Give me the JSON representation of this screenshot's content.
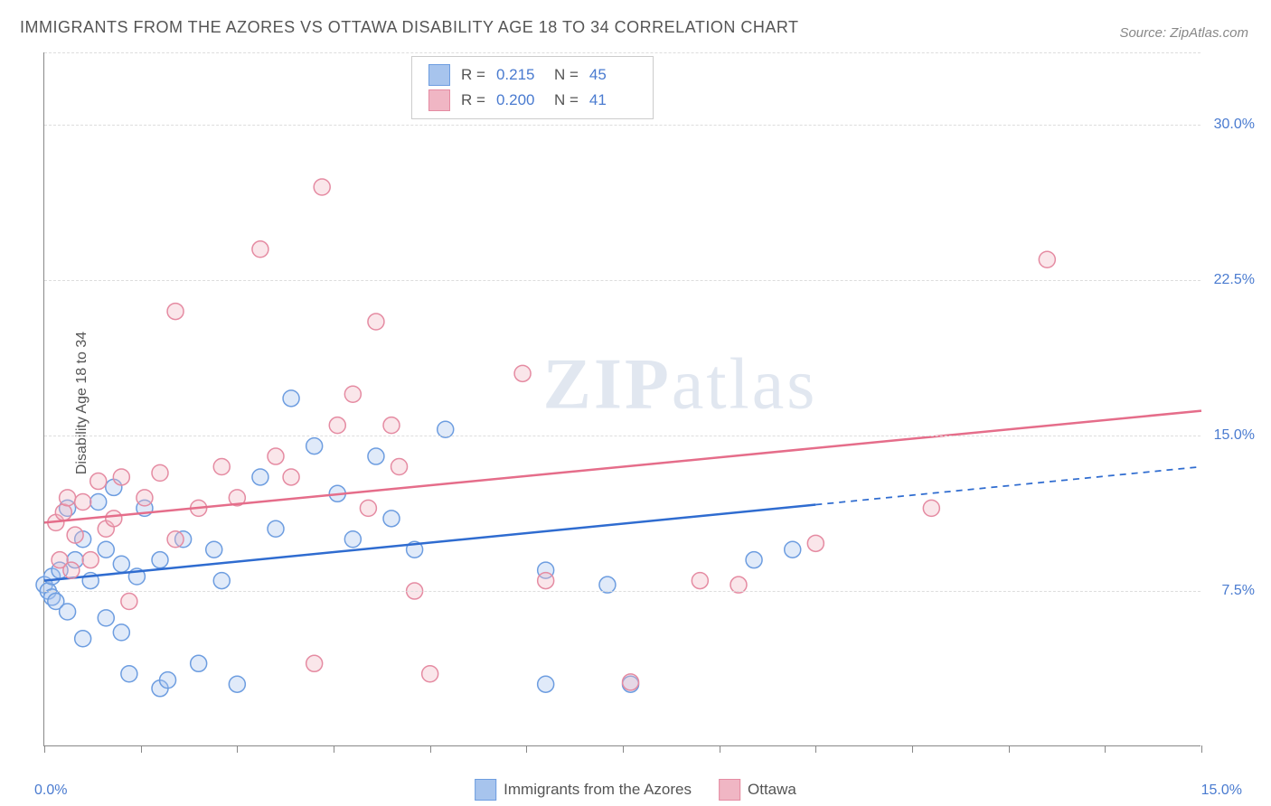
{
  "chart": {
    "type": "scatter",
    "title": "IMMIGRANTS FROM THE AZORES VS OTTAWA DISABILITY AGE 18 TO 34 CORRELATION CHART",
    "source": "Source: ZipAtlas.com",
    "y_axis_label": "Disability Age 18 to 34",
    "watermark": "ZIPatlas",
    "background_color": "#ffffff",
    "grid_color": "#dddddd",
    "axis_color": "#888888",
    "tick_label_color": "#4a7bd0",
    "text_color": "#555555",
    "title_fontsize": 18,
    "axis_label_fontsize": 16,
    "tick_label_fontsize": 16,
    "legend_fontsize": 17,
    "xlim": [
      0,
      15
    ],
    "ylim": [
      0,
      33.5
    ],
    "x_tick_labels": [
      "0.0%",
      "15.0%"
    ],
    "x_tick_positions": [
      0,
      1.25,
      2.5,
      3.75,
      5,
      6.25,
      7.5,
      8.75,
      10,
      11.25,
      12.5,
      13.75,
      15
    ],
    "y_ticks": [
      {
        "value": 7.5,
        "label": "7.5%"
      },
      {
        "value": 15.0,
        "label": "15.0%"
      },
      {
        "value": 22.5,
        "label": "22.5%"
      },
      {
        "value": 30.0,
        "label": "30.0%"
      }
    ],
    "marker_radius": 9,
    "marker_stroke_width": 1.5,
    "marker_fill_opacity": 0.35,
    "trendline_width": 2.5,
    "series": [
      {
        "id": "azores",
        "label": "Immigrants from the Azores",
        "R": "0.215",
        "N": "45",
        "fill_color": "#a7c4ed",
        "stroke_color": "#6d9de0",
        "trendline_color": "#2f6cd0",
        "trendline": {
          "y_at_xmin": 8.0,
          "y_at_xmax": 13.5
        },
        "trendline_solid_until_x": 10.0,
        "points": [
          [
            0.0,
            7.8
          ],
          [
            0.05,
            7.5
          ],
          [
            0.1,
            7.2
          ],
          [
            0.1,
            8.2
          ],
          [
            0.15,
            7.0
          ],
          [
            0.2,
            8.5
          ],
          [
            0.3,
            6.5
          ],
          [
            0.3,
            11.5
          ],
          [
            0.4,
            9.0
          ],
          [
            0.5,
            5.2
          ],
          [
            0.5,
            10.0
          ],
          [
            0.6,
            8.0
          ],
          [
            0.7,
            11.8
          ],
          [
            0.8,
            9.5
          ],
          [
            0.8,
            6.2
          ],
          [
            0.9,
            12.5
          ],
          [
            1.0,
            5.5
          ],
          [
            1.0,
            8.8
          ],
          [
            1.1,
            3.5
          ],
          [
            1.2,
            8.2
          ],
          [
            1.3,
            11.5
          ],
          [
            1.5,
            2.8
          ],
          [
            1.5,
            9.0
          ],
          [
            1.6,
            3.2
          ],
          [
            1.8,
            10.0
          ],
          [
            2.0,
            4.0
          ],
          [
            2.2,
            9.5
          ],
          [
            2.3,
            8.0
          ],
          [
            2.5,
            3.0
          ],
          [
            2.8,
            13.0
          ],
          [
            3.0,
            10.5
          ],
          [
            3.2,
            16.8
          ],
          [
            3.5,
            14.5
          ],
          [
            3.8,
            12.2
          ],
          [
            4.0,
            10.0
          ],
          [
            4.3,
            14.0
          ],
          [
            4.5,
            11.0
          ],
          [
            4.8,
            9.5
          ],
          [
            5.2,
            15.3
          ],
          [
            6.5,
            3.0
          ],
          [
            6.5,
            8.5
          ],
          [
            7.3,
            7.8
          ],
          [
            7.6,
            3.0
          ],
          [
            9.2,
            9.0
          ],
          [
            9.7,
            9.5
          ]
        ]
      },
      {
        "id": "ottawa",
        "label": "Ottawa",
        "R": "0.200",
        "N": "41",
        "fill_color": "#f0b6c4",
        "stroke_color": "#e58ba2",
        "trendline_color": "#e56d8a",
        "trendline": {
          "y_at_xmin": 10.8,
          "y_at_xmax": 16.2
        },
        "trendline_solid_until_x": 15.0,
        "points": [
          [
            0.15,
            10.8
          ],
          [
            0.2,
            9.0
          ],
          [
            0.25,
            11.3
          ],
          [
            0.3,
            12.0
          ],
          [
            0.35,
            8.5
          ],
          [
            0.4,
            10.2
          ],
          [
            0.5,
            11.8
          ],
          [
            0.6,
            9.0
          ],
          [
            0.7,
            12.8
          ],
          [
            0.8,
            10.5
          ],
          [
            0.9,
            11.0
          ],
          [
            1.0,
            13.0
          ],
          [
            1.1,
            7.0
          ],
          [
            1.3,
            12.0
          ],
          [
            1.5,
            13.2
          ],
          [
            1.7,
            10.0
          ],
          [
            1.7,
            21.0
          ],
          [
            2.0,
            11.5
          ],
          [
            2.3,
            13.5
          ],
          [
            2.5,
            12.0
          ],
          [
            2.8,
            24.0
          ],
          [
            3.0,
            14.0
          ],
          [
            3.2,
            13.0
          ],
          [
            3.5,
            4.0
          ],
          [
            3.6,
            27.0
          ],
          [
            3.8,
            15.5
          ],
          [
            4.0,
            17.0
          ],
          [
            4.2,
            11.5
          ],
          [
            4.3,
            20.5
          ],
          [
            4.5,
            15.5
          ],
          [
            4.6,
            13.5
          ],
          [
            4.8,
            7.5
          ],
          [
            5.0,
            3.5
          ],
          [
            6.2,
            18.0
          ],
          [
            6.5,
            8.0
          ],
          [
            7.6,
            3.1
          ],
          [
            8.5,
            8.0
          ],
          [
            10.0,
            9.8
          ],
          [
            11.5,
            11.5
          ],
          [
            13.0,
            23.5
          ],
          [
            9.0,
            7.8
          ]
        ]
      }
    ]
  }
}
